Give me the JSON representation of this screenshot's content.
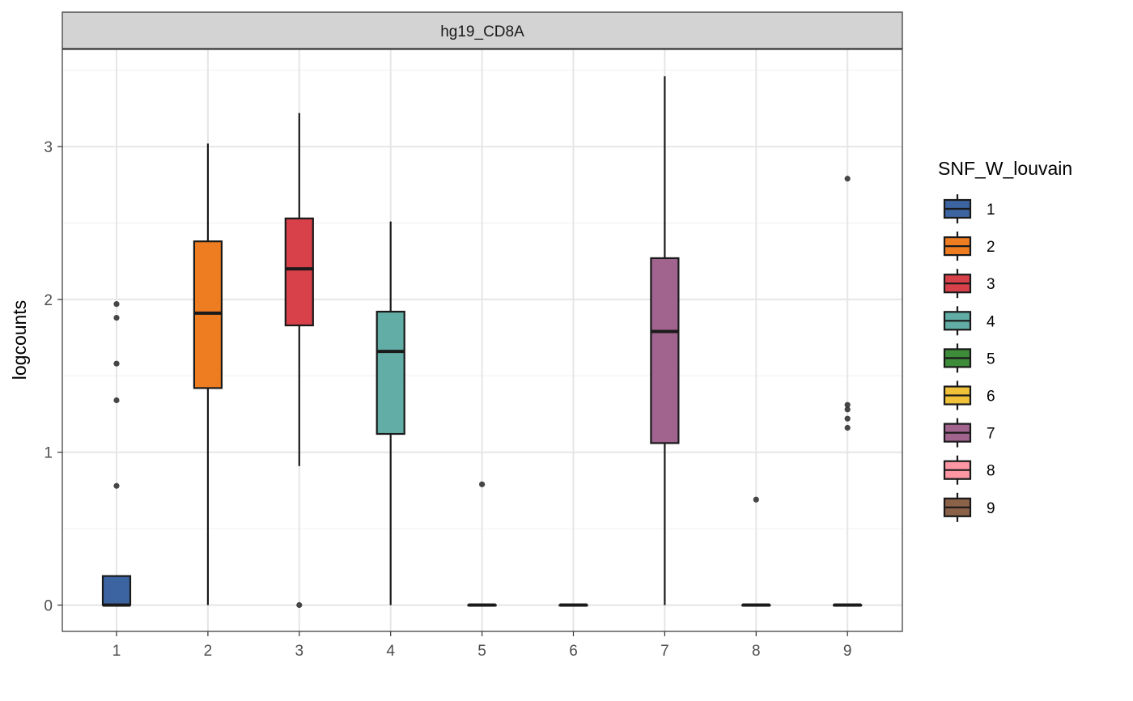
{
  "chart_data": {
    "type": "boxplot",
    "facet_label": "hg19_CD8A",
    "xlabel": "",
    "ylabel": "logcounts",
    "categories": [
      "1",
      "2",
      "3",
      "4",
      "5",
      "6",
      "7",
      "8",
      "9"
    ],
    "ylim": [
      -0.17,
      3.62
    ],
    "y_ticks": [
      0,
      1,
      2,
      3
    ],
    "grid": true,
    "legend": {
      "title": "SNF_W_louvain",
      "position": "right",
      "entries": [
        "1",
        "2",
        "3",
        "4",
        "5",
        "6",
        "7",
        "8",
        "9"
      ]
    },
    "colors": [
      "#3b64a0",
      "#ee7d22",
      "#d8404a",
      "#62ada5",
      "#3d8c3a",
      "#efc23a",
      "#a0648f",
      "#fe97a3",
      "#8b6148"
    ],
    "boxes": [
      {
        "group": "1",
        "min": 0,
        "q1": 0,
        "median": 0,
        "q3": 0.19,
        "max": 0.19,
        "outliers": [
          1.97,
          1.88,
          1.58,
          1.34,
          0.78
        ]
      },
      {
        "group": "2",
        "min": 0,
        "q1": 1.42,
        "median": 1.91,
        "q3": 2.38,
        "max": 3.02,
        "outliers": []
      },
      {
        "group": "3",
        "min": 0.91,
        "q1": 1.83,
        "median": 2.2,
        "q3": 2.53,
        "max": 3.22,
        "outliers": [
          0
        ]
      },
      {
        "group": "4",
        "min": 0,
        "q1": 1.12,
        "median": 1.66,
        "q3": 1.92,
        "max": 2.51,
        "outliers": []
      },
      {
        "group": "5",
        "min": 0,
        "q1": 0,
        "median": 0,
        "q3": 0,
        "max": 0,
        "outliers": [
          0.79
        ]
      },
      {
        "group": "6",
        "min": 0,
        "q1": 0,
        "median": 0,
        "q3": 0,
        "max": 0,
        "outliers": []
      },
      {
        "group": "7",
        "min": 0,
        "q1": 1.06,
        "median": 1.79,
        "q3": 2.27,
        "max": 3.46,
        "outliers": []
      },
      {
        "group": "8",
        "min": 0,
        "q1": 0,
        "median": 0,
        "q3": 0,
        "max": 0,
        "outliers": [
          0.69
        ]
      },
      {
        "group": "9",
        "min": 0,
        "q1": 0,
        "median": 0,
        "q3": 0,
        "max": 0,
        "outliers": [
          2.79,
          1.31,
          1.28,
          1.22,
          1.16
        ]
      }
    ]
  }
}
